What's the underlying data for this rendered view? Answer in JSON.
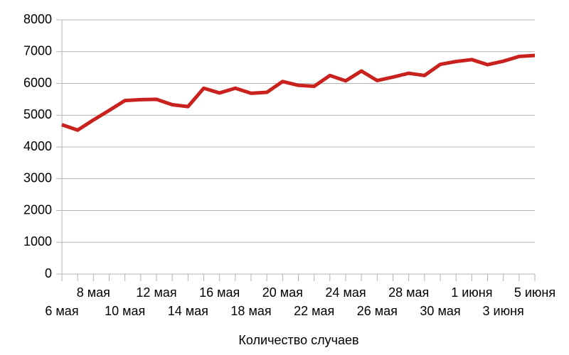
{
  "chart_data": {
    "type": "line",
    "x_label": "Количество случаев",
    "categories": [
      "6 мая",
      null,
      "8 мая",
      null,
      "10 мая",
      null,
      "12 мая",
      null,
      "14 мая",
      null,
      "16 мая",
      null,
      "18 мая",
      null,
      "20 мая",
      null,
      "22 мая",
      null,
      "24 мая",
      null,
      "26 мая",
      null,
      "28 мая",
      null,
      "30 мая",
      null,
      "1 июня",
      null,
      "3 июня",
      null,
      "5 июня"
    ],
    "series": [
      {
        "color": "#c9211e",
        "values": [
          4700,
          4530,
          4850,
          5150,
          5460,
          5490,
          5500,
          5330,
          5270,
          5850,
          5700,
          5850,
          5690,
          5720,
          6060,
          5940,
          5910,
          6250,
          6080,
          6390,
          6090,
          6200,
          6320,
          6250,
          6600,
          6690,
          6750,
          6590,
          6700,
          6850,
          6880
        ]
      }
    ],
    "ylim": [
      0,
      8000
    ],
    "yticks": [
      0,
      1000,
      2000,
      3000,
      4000,
      5000,
      6000,
      7000,
      8000
    ],
    "grid": true
  }
}
